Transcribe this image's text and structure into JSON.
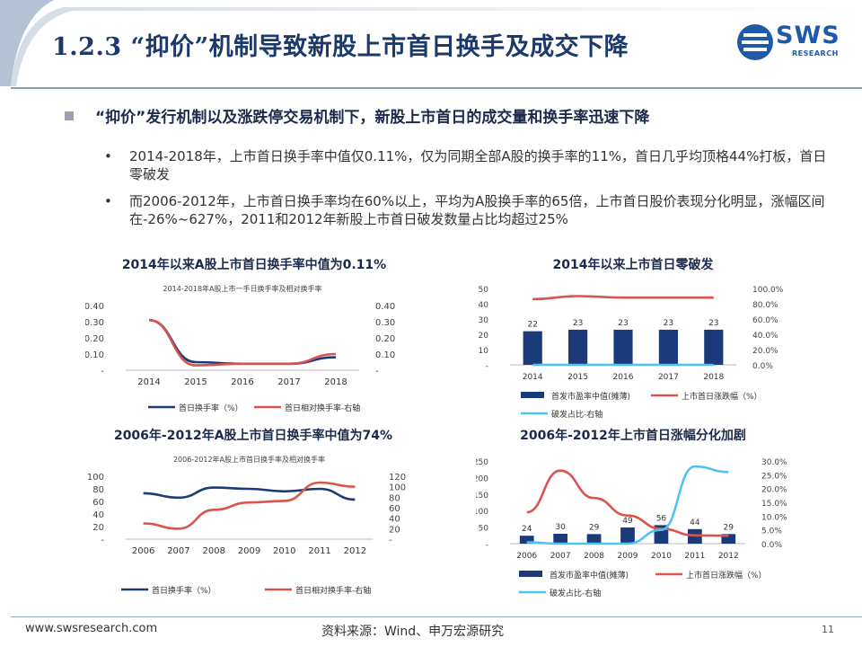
{
  "slide": {
    "title": "1.2.3 “抑价”机制导致新股上市首日换手及成交下降",
    "logo": "SWS",
    "logo_sub": "RESEARCH",
    "main_bullet": "“抑价”发行机制以及涨跌停交易机制下，新股上市首日的成交量和换手率迅速下降",
    "sub_bullets": [
      "2014-2018年，上市首日换手率中值仅0.11%，仅为同期全部A股的换手率的11%，首日几乎均顶格44%打板，首日零破发",
      "而2006-2012年，上市首日换手率均在60%以上，平均为A股换手率的65倍，上市首日股价表现分化明显，涨幅区间在-26%~627%，2011和2012年新股上市首日破发数量占比均超过25%"
    ],
    "bullet_mark": "•",
    "footer_url": "www.swsresearch.com",
    "footer_source": "资料来源：Wind、申万宏源研究",
    "page_number": "11"
  },
  "colors": {
    "navy": "#1a3a7a",
    "red": "#d9534f",
    "cyan": "#4fc3f0",
    "title": "#1b3a6b"
  },
  "chart_data": [
    {
      "id": "c1",
      "type": "line",
      "title": "2014年以来A股上市首日换手率中值为0.11%",
      "inner_title": "2014-2018年A股上市一手日换手率及相对换手率",
      "categories": [
        "2014",
        "2015",
        "2016",
        "2017",
        "2018"
      ],
      "series": [
        {
          "name": "首日换手率（%）",
          "axis": "left",
          "color": "#1a3a7a",
          "values": [
            0.31,
            0.05,
            0.04,
            0.04,
            0.08
          ]
        },
        {
          "name": "首日相对换手率-右轴",
          "axis": "right",
          "color": "#d9534f",
          "values": [
            0.31,
            0.03,
            0.04,
            0.04,
            0.1
          ]
        }
      ],
      "left_ticks": [
        "0.40",
        "0.30",
        "0.20",
        "0.10",
        "-"
      ],
      "right_ticks": [
        "0.40",
        "0.30",
        "0.20",
        "0.10",
        "-"
      ],
      "ylim": [
        0,
        0.4
      ],
      "y2lim": [
        0,
        0.4
      ]
    },
    {
      "id": "c2",
      "type": "bar+line",
      "title": "2014年以来上市首日零破发",
      "categories": [
        "2014",
        "2015",
        "2016",
        "2017",
        "2018"
      ],
      "bars": {
        "name": "首发市盈率中值(摊薄)",
        "color": "#1a3a7a",
        "values": [
          22,
          23,
          23,
          23,
          23
        ],
        "labels": [
          "22",
          "23",
          "23",
          "23",
          "23"
        ]
      },
      "lines": [
        {
          "name": "上市首日涨跌幅（%）",
          "axis": "right",
          "color": "#d9534f",
          "values": [
            0.86,
            0.9,
            0.88,
            0.88,
            0.88
          ]
        },
        {
          "name": "破发占比-右轴",
          "axis": "right",
          "color": "#4fc3f0",
          "values": [
            0,
            0,
            0,
            0,
            0
          ]
        }
      ],
      "left_ticks": [
        "50",
        "40",
        "30",
        "20",
        "10",
        "-"
      ],
      "right_ticks": [
        "100.0%",
        "80.0%",
        "60.0%",
        "40.0%",
        "20.0%",
        "0.0%"
      ],
      "ylim": [
        0,
        50
      ],
      "y2lim": [
        0,
        1.0
      ]
    },
    {
      "id": "c3",
      "type": "line",
      "title": "2006年-2012年A股上市首日换手率中值为74%",
      "inner_title": "2006-2012年A股上市首日换手率及相对换手率",
      "categories": [
        "2006",
        "2007",
        "2008",
        "2009",
        "2010",
        "2011",
        "2012"
      ],
      "series": [
        {
          "name": "首日换手率（%）",
          "axis": "left",
          "color": "#1a3a7a",
          "values": [
            73,
            66,
            82,
            80,
            76,
            80,
            63
          ]
        },
        {
          "name": "首日相对换手率-右轴",
          "axis": "right",
          "color": "#d9534f",
          "values": [
            30,
            20,
            56,
            70,
            73,
            108,
            100
          ]
        }
      ],
      "left_ticks": [
        "100",
        "80",
        "60",
        "40",
        "20",
        "-"
      ],
      "right_ticks": [
        "120",
        "100",
        "80",
        "60",
        "40",
        "20",
        "-"
      ],
      "ylim": [
        0,
        100
      ],
      "y2lim": [
        0,
        120
      ]
    },
    {
      "id": "c4",
      "type": "bar+line",
      "title": "2006年-2012年上市首日涨幅分化加剧",
      "categories": [
        "2006",
        "2007",
        "2008",
        "2009",
        "2010",
        "2011",
        "2012"
      ],
      "bars": {
        "name": "首发市盈率中值(摊薄)",
        "color": "#1a3a7a",
        "values": [
          24,
          30,
          29,
          49,
          56,
          44,
          29
        ],
        "labels": [
          "24",
          "30",
          "29",
          "49",
          "56",
          "44",
          "29"
        ]
      },
      "lines": [
        {
          "name": "上市首日涨跌幅（%）",
          "axis": "left",
          "color": "#d9534f",
          "values": [
            95,
            221,
            138,
            85,
            45,
            25,
            24
          ]
        },
        {
          "name": "破发占比-右轴",
          "axis": "right",
          "color": "#4fc3f0",
          "values": [
            0.005,
            0.0,
            0.0,
            0.0,
            0.05,
            0.28,
            0.26
          ]
        }
      ],
      "left_ticks": [
        "250",
        "200",
        "150",
        "100",
        "50",
        "-"
      ],
      "right_ticks": [
        "30.0%",
        "25.0%",
        "20.0%",
        "15.0%",
        "10.0%",
        "5.0%",
        "0.0%"
      ],
      "ylim": [
        0,
        250
      ],
      "y2lim": [
        0,
        0.3
      ]
    }
  ]
}
